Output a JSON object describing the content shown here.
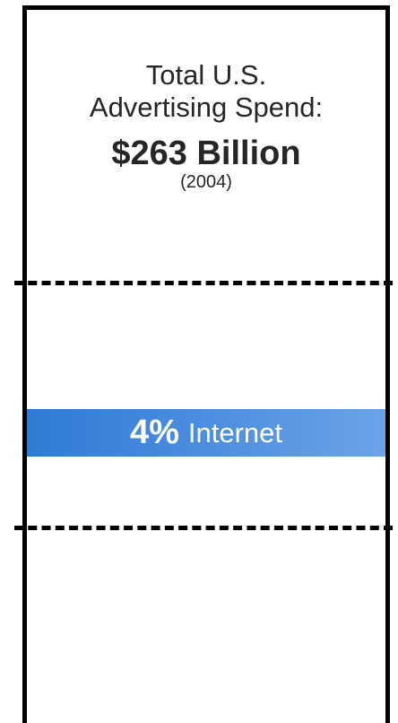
{
  "title": {
    "line1": "Total U.S.",
    "line2": "Advertising Spend:"
  },
  "total": {
    "amount": "$263 Billion",
    "year": "(2004)"
  },
  "chart_data": {
    "type": "bar",
    "title": "Total U.S. Advertising Spend:",
    "total_label": "$263 Billion",
    "year_label": "(2004)",
    "total_value_billion_usd": 263,
    "year": 2004,
    "segments": [
      {
        "label": "Internet",
        "percent": 4,
        "percent_label": "4%",
        "color": "#3a82da"
      }
    ]
  }
}
